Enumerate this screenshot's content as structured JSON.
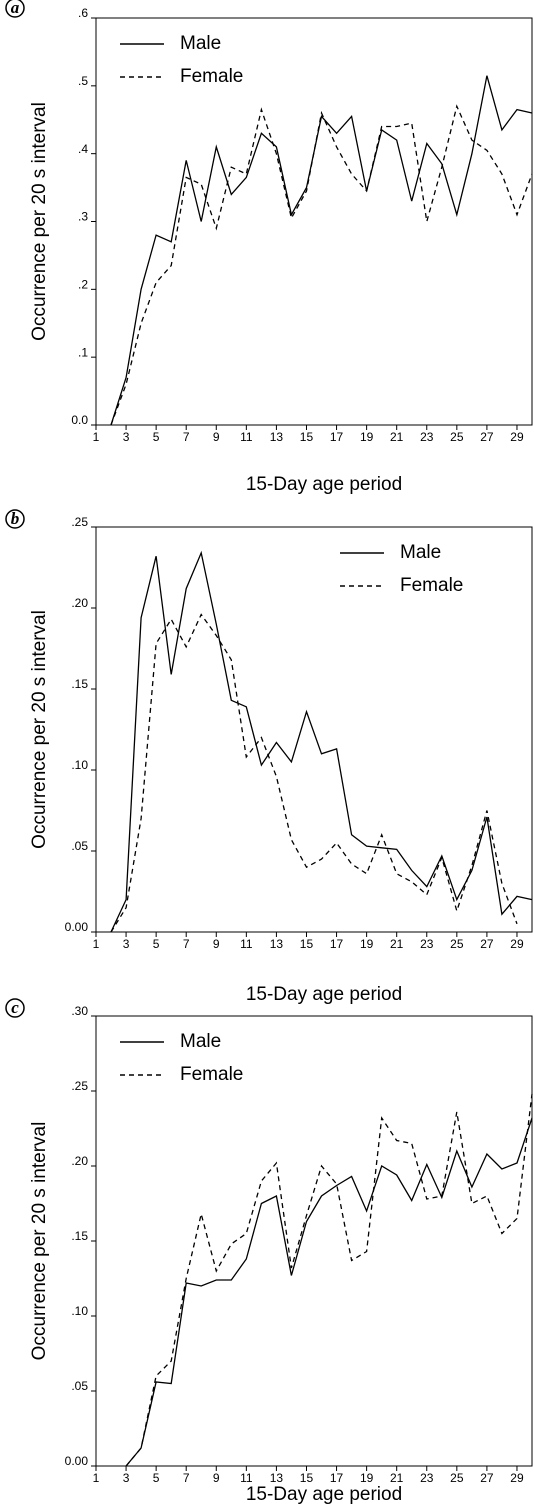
{
  "chart_data": [
    {
      "type": "line",
      "panel_label": "a",
      "xlabel": "15-Day age period",
      "ylabel": "Occurrence per 20 s interval",
      "x": [
        2,
        3,
        4,
        5,
        6,
        7,
        8,
        9,
        10,
        11,
        12,
        13,
        14,
        15,
        16,
        17,
        18,
        19,
        20,
        21,
        22,
        23,
        24,
        25,
        26,
        27,
        28,
        29,
        30
      ],
      "xlim": [
        1,
        30
      ],
      "xticks": [
        1,
        3,
        5,
        7,
        9,
        11,
        13,
        15,
        17,
        19,
        21,
        23,
        25,
        27,
        29
      ],
      "ylim": [
        0,
        0.6
      ],
      "yticks": [
        {
          "value": 0,
          "label": "0.0"
        },
        {
          "value": 0.1,
          "label": ".1"
        },
        {
          "value": 0.2,
          "label": ".2"
        },
        {
          "value": 0.3,
          "label": ".3"
        },
        {
          "value": 0.4,
          "label": ".4"
        },
        {
          "value": 0.5,
          "label": ".5"
        },
        {
          "value": 0.6,
          "label": ".6"
        }
      ],
      "legend": "upper left",
      "series": [
        {
          "name": "Male",
          "color": "#000000",
          "style": "solid",
          "values": [
            0,
            0.07,
            0.2,
            0.28,
            0.27,
            0.39,
            0.3,
            0.41,
            0.34,
            0.365,
            0.43,
            0.41,
            0.31,
            0.35,
            0.455,
            0.43,
            0.455,
            0.345,
            0.435,
            0.42,
            0.33,
            0.415,
            0.385,
            0.31,
            0.4,
            0.515,
            0.435,
            0.465,
            0.46
          ]
        },
        {
          "name": "Female",
          "color": "#000000",
          "style": "dashed",
          "values": [
            0,
            0.06,
            0.15,
            0.21,
            0.235,
            0.365,
            0.355,
            0.29,
            0.38,
            0.37,
            0.465,
            0.4,
            0.305,
            0.345,
            0.46,
            0.41,
            0.37,
            0.345,
            0.44,
            0.44,
            0.445,
            0.3,
            0.38,
            0.47,
            0.42,
            0.405,
            0.37,
            0.31,
            0.37
          ]
        }
      ]
    },
    {
      "type": "line",
      "panel_label": "b",
      "xlabel": "15-Day age period",
      "ylabel": "Occurrence per 20 s interval",
      "x": [
        2,
        3,
        4,
        5,
        6,
        7,
        8,
        9,
        10,
        11,
        12,
        13,
        14,
        15,
        16,
        17,
        18,
        19,
        20,
        21,
        22,
        23,
        24,
        25,
        26,
        27,
        28,
        29,
        30
      ],
      "xlim": [
        1,
        30
      ],
      "xticks": [
        1,
        3,
        5,
        7,
        9,
        11,
        13,
        15,
        17,
        19,
        21,
        23,
        25,
        27,
        29
      ],
      "ylim": [
        0,
        0.25
      ],
      "yticks": [
        {
          "value": 0,
          "label": "0.00"
        },
        {
          "value": 0.05,
          "label": ".05"
        },
        {
          "value": 0.1,
          "label": ".10"
        },
        {
          "value": 0.15,
          "label": ".15"
        },
        {
          "value": 0.2,
          "label": ".20"
        },
        {
          "value": 0.25,
          "label": ".25"
        }
      ],
      "legend": "upper right",
      "series": [
        {
          "name": "Male",
          "color": "#000000",
          "style": "solid",
          "values": [
            0,
            0.02,
            0.194,
            0.232,
            0.159,
            0.212,
            0.234,
            0.19,
            0.143,
            0.139,
            0.103,
            0.117,
            0.105,
            0.136,
            0.11,
            0.113,
            0.06,
            0.053,
            0.052,
            0.051,
            0.038,
            0.028,
            0.047,
            0.02,
            0.038,
            0.071,
            0.011,
            0.022,
            0.02
          ]
        },
        {
          "name": "Female",
          "color": "#000000",
          "style": "dashed",
          "values": [
            0,
            0.015,
            0.07,
            0.178,
            0.193,
            0.176,
            0.196,
            0.183,
            0.168,
            0.108,
            0.12,
            0.096,
            0.057,
            0.04,
            0.045,
            0.055,
            0.042,
            0.036,
            0.06,
            0.036,
            0.031,
            0.023,
            0.046,
            0.013,
            0.041,
            0.075,
            0.03,
            0.005,
            null
          ]
        }
      ]
    },
    {
      "type": "line",
      "panel_label": "c",
      "xlabel": "15-Day age period",
      "ylabel": "Occurrence per 20 s interval",
      "x": [
        3,
        4,
        5,
        6,
        7,
        8,
        9,
        10,
        11,
        12,
        13,
        14,
        15,
        16,
        17,
        18,
        19,
        20,
        21,
        22,
        23,
        24,
        25,
        26,
        27,
        28,
        29,
        30
      ],
      "xlim": [
        1,
        30
      ],
      "xticks": [
        1,
        3,
        5,
        7,
        9,
        11,
        13,
        15,
        17,
        19,
        21,
        23,
        25,
        27,
        29
      ],
      "ylim": [
        0,
        0.3
      ],
      "yticks": [
        {
          "value": 0,
          "label": "0.00"
        },
        {
          "value": 0.05,
          "label": ".05"
        },
        {
          "value": 0.1,
          "label": ".10"
        },
        {
          "value": 0.15,
          "label": ".15"
        },
        {
          "value": 0.2,
          "label": ".20"
        },
        {
          "value": 0.25,
          "label": ".25"
        },
        {
          "value": 0.3,
          "label": ".30"
        }
      ],
      "legend": "upper left",
      "series": [
        {
          "name": "Male",
          "color": "#000000",
          "style": "solid",
          "values": [
            0,
            0.012,
            0.056,
            0.055,
            0.122,
            0.12,
            0.124,
            0.124,
            0.138,
            0.175,
            0.18,
            0.127,
            0.163,
            0.18,
            0.187,
            0.193,
            0.17,
            0.2,
            0.194,
            0.177,
            0.201,
            0.179,
            0.21,
            0.186,
            0.208,
            0.198,
            0.202,
            0.232
          ]
        },
        {
          "name": "Female",
          "color": "#000000",
          "style": "dashed",
          "values": [
            0,
            0.012,
            0.06,
            0.07,
            0.125,
            0.168,
            0.13,
            0.148,
            0.155,
            0.19,
            0.202,
            0.132,
            0.167,
            0.2,
            0.188,
            0.137,
            0.143,
            0.232,
            0.217,
            0.215,
            0.178,
            0.18,
            0.236,
            0.175,
            0.18,
            0.155,
            0.165,
            0.248
          ]
        }
      ]
    }
  ]
}
